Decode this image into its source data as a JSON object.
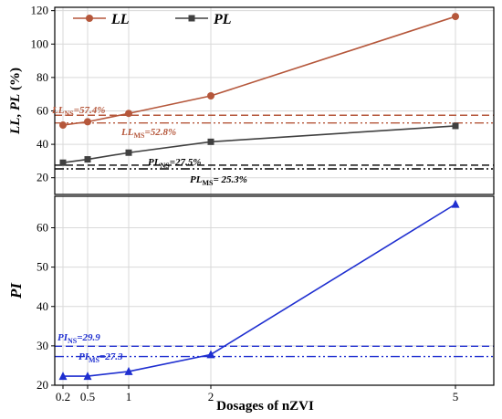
{
  "chart_data": [
    {
      "type": "line",
      "ylabel_parts": [
        "LL",
        ", ",
        "PL",
        " (%)"
      ],
      "ylim": [
        10,
        122
      ],
      "yticks": [
        20,
        40,
        60,
        80,
        100,
        120
      ],
      "x": [
        0.2,
        0.5,
        1,
        2,
        5
      ],
      "legend_placement": "top-left",
      "series": [
        {
          "name": "LL",
          "values": [
            51.5,
            53.5,
            58.5,
            69.0,
            116.5
          ],
          "color": "#b5573b",
          "marker": "circle"
        },
        {
          "name": "PL",
          "values": [
            29.0,
            31.0,
            35.0,
            41.5,
            51.0
          ],
          "color": "#404040",
          "marker": "square"
        }
      ],
      "reference_lines": [
        {
          "value": 57.4,
          "color": "#b5573b",
          "style": "dashed",
          "label_base": "LL",
          "label_sub": "NS",
          "label_rest": "=57.4%"
        },
        {
          "value": 52.8,
          "color": "#b5573b",
          "style": "dashdot",
          "label_base": "LL",
          "label_sub": "MS",
          "label_rest": "=52.8%"
        },
        {
          "value": 27.5,
          "color": "#000000",
          "style": "dashed",
          "label_base": "PL",
          "label_sub": "NS",
          "label_rest": "=27.5%"
        },
        {
          "value": 25.3,
          "color": "#000000",
          "style": "dashdot",
          "label_base": "PL",
          "label_sub": "MS",
          "label_rest": "= 25.3%"
        }
      ]
    },
    {
      "type": "line",
      "ylabel": "PI",
      "xlabel": "Dosages of nZVI",
      "ylim": [
        20,
        68
      ],
      "yticks": [
        20,
        30,
        40,
        50,
        60
      ],
      "x": [
        0.2,
        0.5,
        1,
        2,
        5
      ],
      "xticks": [
        "0.2",
        "0.5",
        "1",
        "2",
        "5"
      ],
      "series": [
        {
          "name": "PI",
          "values": [
            22.3,
            22.3,
            23.5,
            27.8,
            66.0
          ],
          "color": "#1f2fd0",
          "marker": "triangle"
        }
      ],
      "reference_lines": [
        {
          "value": 29.9,
          "color": "#1f2fd0",
          "style": "dashed",
          "label_base": "PI",
          "label_sub": "NS",
          "label_rest": "=29.9"
        },
        {
          "value": 27.3,
          "color": "#1f2fd0",
          "style": "dashdot",
          "label_base": "PI",
          "label_sub": "MS",
          "label_rest": "=27.3"
        }
      ]
    }
  ]
}
